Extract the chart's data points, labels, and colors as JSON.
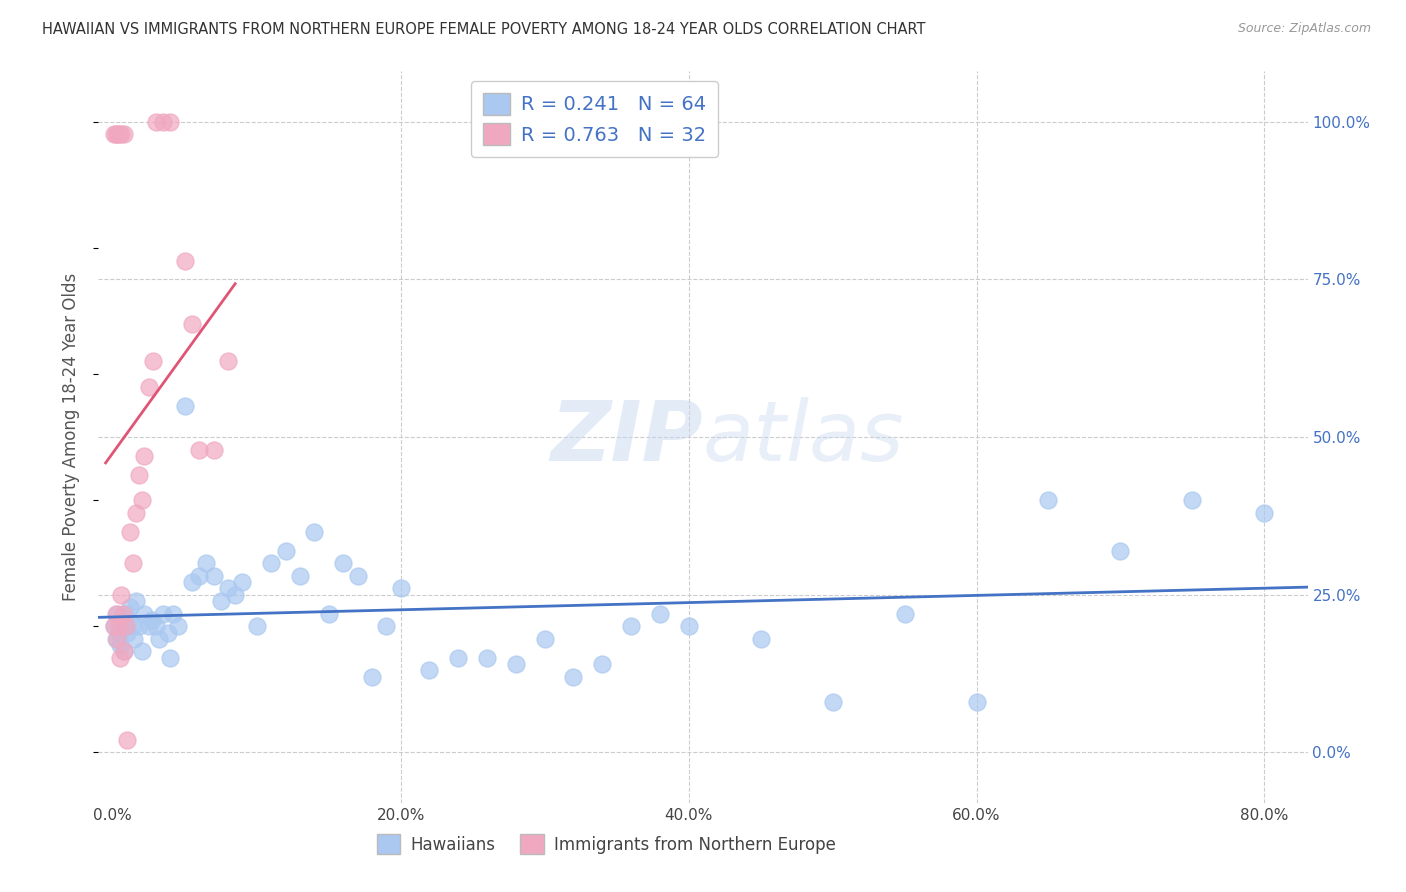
{
  "title": "HAWAIIAN VS IMMIGRANTS FROM NORTHERN EUROPE FEMALE POVERTY AMONG 18-24 YEAR OLDS CORRELATION CHART",
  "source": "Source: ZipAtlas.com",
  "ylabel": "Female Poverty Among 18-24 Year Olds",
  "xlabel_ticks": [
    "0.0%",
    "20.0%",
    "40.0%",
    "60.0%",
    "80.0%"
  ],
  "xlabel_tick_vals": [
    0.0,
    0.2,
    0.4,
    0.6,
    0.8
  ],
  "ylabel_ticks": [
    "100.0%",
    "75.0%",
    "50.0%",
    "25.0%",
    "0.0%"
  ],
  "ylabel_tick_vals": [
    1.0,
    0.75,
    0.5,
    0.25,
    0.0
  ],
  "xlim": [
    -0.01,
    0.83
  ],
  "ylim": [
    -0.08,
    1.08
  ],
  "blue_color": "#aac8f0",
  "pink_color": "#f0a8c0",
  "blue_line_color": "#4472c4",
  "pink_line_color": "#e05575",
  "title_color": "#333333",
  "source_color": "#999999",
  "axis_label_color": "#555555",
  "R_blue": 0.241,
  "N_blue": 64,
  "R_pink": 0.763,
  "N_pink": 32,
  "watermark_zip": "ZIP",
  "watermark_atlas": "atlas",
  "hawaiians_x": [
    0.001,
    0.002,
    0.003,
    0.004,
    0.005,
    0.006,
    0.007,
    0.008,
    0.009,
    0.01,
    0.012,
    0.014,
    0.015,
    0.016,
    0.018,
    0.02,
    0.022,
    0.025,
    0.027,
    0.03,
    0.032,
    0.035,
    0.038,
    0.04,
    0.042,
    0.045,
    0.05,
    0.055,
    0.06,
    0.065,
    0.07,
    0.075,
    0.08,
    0.085,
    0.09,
    0.1,
    0.11,
    0.12,
    0.13,
    0.14,
    0.15,
    0.16,
    0.17,
    0.18,
    0.19,
    0.2,
    0.22,
    0.24,
    0.26,
    0.28,
    0.3,
    0.32,
    0.34,
    0.36,
    0.38,
    0.4,
    0.45,
    0.5,
    0.55,
    0.6,
    0.65,
    0.7,
    0.75,
    0.8
  ],
  "hawaiians_y": [
    0.2,
    0.18,
    0.22,
    0.19,
    0.17,
    0.21,
    0.2,
    0.16,
    0.22,
    0.19,
    0.23,
    0.2,
    0.18,
    0.24,
    0.2,
    0.16,
    0.22,
    0.2,
    0.21,
    0.2,
    0.18,
    0.22,
    0.19,
    0.15,
    0.22,
    0.2,
    0.55,
    0.27,
    0.28,
    0.3,
    0.28,
    0.24,
    0.26,
    0.25,
    0.27,
    0.2,
    0.3,
    0.32,
    0.28,
    0.35,
    0.22,
    0.3,
    0.28,
    0.12,
    0.2,
    0.26,
    0.13,
    0.15,
    0.15,
    0.14,
    0.18,
    0.12,
    0.14,
    0.2,
    0.22,
    0.2,
    0.18,
    0.08,
    0.22,
    0.08,
    0.4,
    0.32,
    0.4,
    0.38
  ],
  "immigrants_x": [
    0.001,
    0.002,
    0.003,
    0.004,
    0.005,
    0.006,
    0.007,
    0.008,
    0.009,
    0.01,
    0.012,
    0.014,
    0.016,
    0.018,
    0.02,
    0.022,
    0.025,
    0.028,
    0.03,
    0.035,
    0.04,
    0.05,
    0.055,
    0.06,
    0.07,
    0.08,
    0.001,
    0.002,
    0.003,
    0.004,
    0.006,
    0.008
  ],
  "immigrants_y": [
    0.2,
    0.22,
    0.18,
    0.2,
    0.15,
    0.25,
    0.22,
    0.16,
    0.2,
    0.02,
    0.35,
    0.3,
    0.38,
    0.44,
    0.4,
    0.47,
    0.58,
    0.62,
    1.0,
    1.0,
    1.0,
    0.78,
    0.68,
    0.48,
    0.48,
    0.62,
    0.98,
    0.98,
    0.98,
    0.98,
    0.98,
    0.98
  ],
  "background_color": "#ffffff",
  "grid_color": "#cccccc"
}
